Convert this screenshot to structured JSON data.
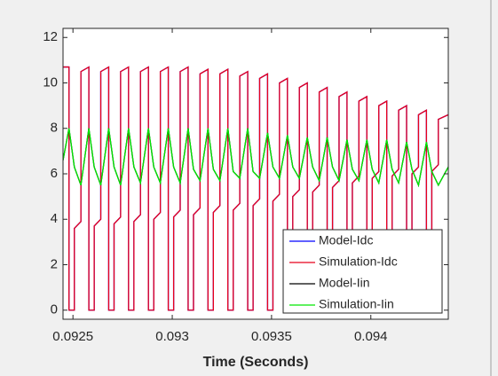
{
  "chart_data": {
    "type": "line",
    "xlabel": "Time (Seconds)",
    "x": [
      0.09245,
      0.09248,
      0.09248,
      0.092507,
      0.092507,
      0.09254,
      0.09254,
      0.09258,
      0.09258,
      0.092607,
      0.092607,
      0.09264,
      0.09264,
      0.09268,
      0.09268,
      0.092707,
      0.092707,
      0.09274,
      0.09274,
      0.09278,
      0.09278,
      0.092807,
      0.092807,
      0.09284,
      0.09284,
      0.09288,
      0.09288,
      0.092907,
      0.092907,
      0.09294,
      0.09294,
      0.09298,
      0.09298,
      0.093007,
      0.093007,
      0.09304,
      0.09304,
      0.09308,
      0.09308,
      0.093107,
      0.093107,
      0.09314,
      0.09314,
      0.09318,
      0.09318,
      0.093207,
      0.093207,
      0.09324,
      0.09324,
      0.09328,
      0.09328,
      0.093307,
      0.093307,
      0.09334,
      0.09334,
      0.09338,
      0.09338,
      0.093407,
      0.093407,
      0.09344,
      0.09344,
      0.09348,
      0.09348,
      0.093507,
      0.093507,
      0.09354,
      0.09354,
      0.09358,
      0.09358,
      0.093607,
      0.093607,
      0.09364,
      0.09364,
      0.09368,
      0.09368,
      0.093707,
      0.093707,
      0.09374,
      0.09374,
      0.09378,
      0.09378,
      0.093807,
      0.093807,
      0.09384,
      0.09384,
      0.09388,
      0.09388,
      0.093907,
      0.093907,
      0.09394,
      0.09394,
      0.09398,
      0.09398,
      0.094007,
      0.094007,
      0.09404,
      0.09404,
      0.09408,
      0.09408,
      0.094107,
      0.094107,
      0.09414,
      0.09414,
      0.09418,
      0.09418,
      0.094207,
      0.094207,
      0.09424,
      0.09424,
      0.09428,
      0.09428,
      0.094307,
      0.094307,
      0.09434,
      0.09434,
      0.09439
    ],
    "series": [
      {
        "name": "Model-Idc",
        "color": "#0000ff",
        "values": [
          10.7,
          10.7,
          0,
          0,
          3.6,
          3.9,
          10.5,
          10.7,
          0,
          0,
          3.7,
          4.0,
          10.5,
          10.7,
          0,
          0,
          3.8,
          4.1,
          10.5,
          10.7,
          0,
          0,
          3.9,
          4.2,
          10.5,
          10.7,
          0,
          0,
          4.0,
          4.3,
          10.5,
          10.7,
          0,
          0,
          4.1,
          4.4,
          10.5,
          10.7,
          0,
          0,
          4.2,
          4.5,
          10.4,
          10.6,
          0,
          0,
          4.3,
          4.6,
          10.4,
          10.6,
          0,
          0,
          4.4,
          4.7,
          10.3,
          10.5,
          0,
          0,
          4.6,
          4.9,
          10.2,
          10.4,
          0,
          0,
          4.8,
          5.1,
          10.0,
          10.2,
          0,
          0,
          5.0,
          5.3,
          9.8,
          10.0,
          0,
          0,
          5.2,
          5.5,
          9.6,
          9.8,
          0,
          0,
          5.4,
          5.7,
          9.4,
          9.6,
          0,
          0,
          5.6,
          5.9,
          9.2,
          9.4,
          0,
          0,
          5.8,
          6.1,
          9.0,
          9.2,
          0,
          0,
          5.9,
          6.2,
          8.8,
          9.0,
          0,
          0,
          6.0,
          6.3,
          8.6,
          8.8,
          0,
          0,
          6.1,
          6.4,
          8.4,
          8.6
        ]
      },
      {
        "name": "Simulation-Idc",
        "color": "#e8001c",
        "values": [
          10.7,
          10.7,
          0,
          0,
          3.6,
          3.9,
          10.5,
          10.7,
          0,
          0,
          3.7,
          4.0,
          10.5,
          10.7,
          0,
          0,
          3.8,
          4.1,
          10.5,
          10.7,
          0,
          0,
          3.9,
          4.2,
          10.5,
          10.7,
          0,
          0,
          4.0,
          4.3,
          10.5,
          10.7,
          0,
          0,
          4.1,
          4.4,
          10.5,
          10.7,
          0,
          0,
          4.2,
          4.5,
          10.4,
          10.6,
          0,
          0,
          4.3,
          4.6,
          10.4,
          10.6,
          0,
          0,
          4.4,
          4.7,
          10.3,
          10.5,
          0,
          0,
          4.6,
          4.9,
          10.2,
          10.4,
          0,
          0,
          4.8,
          5.1,
          10.0,
          10.2,
          0,
          0,
          5.0,
          5.3,
          9.8,
          10.0,
          0,
          0,
          5.2,
          5.5,
          9.6,
          9.8,
          0,
          0,
          5.4,
          5.7,
          9.4,
          9.6,
          0,
          0,
          5.6,
          5.9,
          9.2,
          9.4,
          0,
          0,
          5.8,
          6.1,
          9.0,
          9.2,
          0,
          0,
          5.9,
          6.2,
          8.8,
          9.0,
          0,
          0,
          6.0,
          6.3,
          8.6,
          8.8,
          0,
          0,
          6.1,
          6.4,
          8.4,
          8.6
        ]
      },
      {
        "name": "Model-Iin",
        "color": "#000000",
        "values": [
          6.6,
          8.0,
          8.0,
          6.3,
          6.3,
          5.5,
          5.5,
          8.0,
          8.0,
          6.3,
          6.3,
          5.5,
          5.5,
          8.0,
          8.0,
          6.3,
          6.3,
          5.5,
          5.5,
          8.0,
          8.0,
          6.3,
          6.3,
          5.6,
          5.6,
          8.0,
          8.0,
          6.3,
          6.3,
          5.6,
          5.6,
          8.0,
          8.0,
          6.3,
          6.3,
          5.6,
          5.6,
          8.0,
          8.0,
          6.2,
          6.2,
          5.7,
          5.7,
          8.0,
          8.0,
          6.2,
          6.2,
          5.7,
          5.7,
          8.0,
          8.0,
          6.1,
          6.1,
          5.8,
          5.8,
          8.0,
          8.0,
          6.1,
          6.1,
          5.8,
          5.8,
          7.8,
          7.8,
          6.3,
          6.3,
          5.8,
          5.8,
          7.7,
          7.7,
          6.3,
          6.3,
          5.8,
          5.8,
          7.6,
          7.6,
          6.3,
          6.3,
          5.7,
          5.7,
          7.6,
          7.6,
          6.3,
          6.3,
          5.7,
          5.7,
          7.5,
          7.5,
          6.2,
          6.2,
          5.7,
          5.7,
          7.5,
          7.5,
          6.2,
          6.2,
          5.6,
          5.6,
          7.5,
          7.5,
          6.2,
          6.2,
          5.6,
          5.6,
          7.4,
          7.4,
          6.2,
          6.2,
          5.5,
          5.5,
          7.4,
          7.4,
          6.1,
          6.1,
          5.5,
          5.5,
          6.3
        ]
      },
      {
        "name": "Simulation-Iin",
        "color": "#00e600",
        "values": [
          6.6,
          8.0,
          8.0,
          6.3,
          6.3,
          5.5,
          5.5,
          8.0,
          8.0,
          6.3,
          6.3,
          5.5,
          5.5,
          8.0,
          8.0,
          6.3,
          6.3,
          5.5,
          5.5,
          8.0,
          8.0,
          6.3,
          6.3,
          5.6,
          5.6,
          8.0,
          8.0,
          6.3,
          6.3,
          5.6,
          5.6,
          8.0,
          8.0,
          6.3,
          6.3,
          5.6,
          5.6,
          8.0,
          8.0,
          6.2,
          6.2,
          5.7,
          5.7,
          8.0,
          8.0,
          6.2,
          6.2,
          5.7,
          5.7,
          8.0,
          8.0,
          6.1,
          6.1,
          5.8,
          5.8,
          8.0,
          8.0,
          6.1,
          6.1,
          5.8,
          5.8,
          7.8,
          7.8,
          6.3,
          6.3,
          5.8,
          5.8,
          7.7,
          7.7,
          6.3,
          6.3,
          5.8,
          5.8,
          7.6,
          7.6,
          6.3,
          6.3,
          5.7,
          5.7,
          7.6,
          7.6,
          6.3,
          6.3,
          5.7,
          5.7,
          7.5,
          7.5,
          6.2,
          6.2,
          5.7,
          5.7,
          7.5,
          7.5,
          6.2,
          6.2,
          5.6,
          5.6,
          7.5,
          7.5,
          6.2,
          6.2,
          5.6,
          5.6,
          7.4,
          7.4,
          6.2,
          6.2,
          5.5,
          5.5,
          7.4,
          7.4,
          6.1,
          6.1,
          5.5,
          5.5,
          6.3
        ]
      }
    ],
    "xlim": [
      0.09245,
      0.09439
    ],
    "xticks": [
      0.0925,
      0.093,
      0.0935,
      0.094
    ],
    "ylim": [
      -0.4,
      12.4
    ],
    "yticks": [
      0,
      2,
      4,
      6,
      8,
      10,
      12
    ],
    "grid": false,
    "legend": "lower right"
  }
}
